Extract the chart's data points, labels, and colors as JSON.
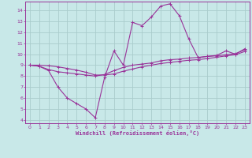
{
  "xlabel": "Windchill (Refroidissement éolien,°C)",
  "xlim": [
    -0.5,
    23.5
  ],
  "ylim": [
    3.7,
    14.8
  ],
  "yticks": [
    4,
    5,
    6,
    7,
    8,
    9,
    10,
    11,
    12,
    13,
    14
  ],
  "xticks": [
    0,
    1,
    2,
    3,
    4,
    5,
    6,
    7,
    8,
    9,
    10,
    11,
    12,
    13,
    14,
    15,
    16,
    17,
    18,
    19,
    20,
    21,
    22,
    23
  ],
  "bg_color": "#c8e8e8",
  "line_color": "#993399",
  "grid_color": "#aacccc",
  "line1_x": [
    0,
    1,
    2,
    3,
    4,
    5,
    6,
    7,
    8,
    9,
    10,
    11,
    12,
    13,
    14,
    15,
    16,
    17,
    18,
    19,
    20,
    21,
    22,
    23
  ],
  "line1_y": [
    9.0,
    8.9,
    8.5,
    7.0,
    6.0,
    5.5,
    5.0,
    4.2,
    7.9,
    10.3,
    9.0,
    12.9,
    12.6,
    13.4,
    14.4,
    14.6,
    13.5,
    11.4,
    9.7,
    9.8,
    9.9,
    10.3,
    10.0,
    10.5
  ],
  "line2_x": [
    0,
    1,
    2,
    3,
    4,
    5,
    6,
    7,
    8,
    9,
    10,
    11,
    12,
    13,
    14,
    15,
    16,
    17,
    18,
    19,
    20,
    21,
    22,
    23
  ],
  "line2_y": [
    9.0,
    8.9,
    8.6,
    8.4,
    8.3,
    8.2,
    8.1,
    8.0,
    8.15,
    8.5,
    8.8,
    9.0,
    9.1,
    9.2,
    9.4,
    9.5,
    9.55,
    9.65,
    9.7,
    9.8,
    9.85,
    9.95,
    10.05,
    10.4
  ],
  "line3_x": [
    0,
    1,
    2,
    3,
    4,
    5,
    6,
    7,
    8,
    9,
    10,
    11,
    12,
    13,
    14,
    15,
    16,
    17,
    18,
    19,
    20,
    21,
    22,
    23
  ],
  "line3_y": [
    9.0,
    9.0,
    8.95,
    8.85,
    8.7,
    8.55,
    8.35,
    8.1,
    8.1,
    8.2,
    8.45,
    8.65,
    8.85,
    9.0,
    9.15,
    9.25,
    9.35,
    9.45,
    9.5,
    9.6,
    9.72,
    9.85,
    9.95,
    10.25
  ]
}
